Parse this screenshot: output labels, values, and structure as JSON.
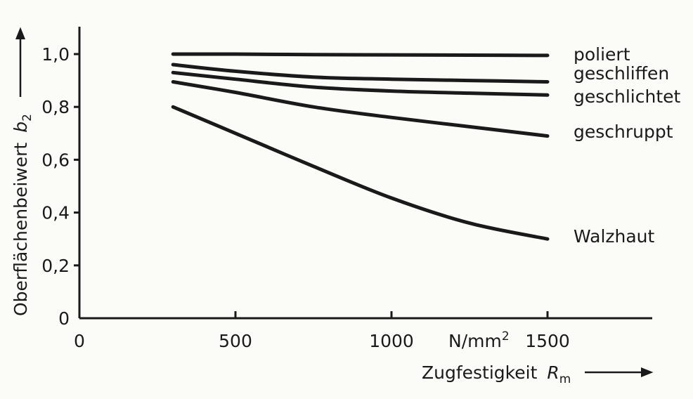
{
  "chart_data": {
    "type": "line",
    "xlabel": "Zugfestigkeit",
    "xlabel_symbol": "R",
    "xlabel_sub": "m",
    "ylabel": "Oberflächenbeiwert",
    "ylabel_symbol": "b",
    "ylabel_sub": "2",
    "x_unit": "N/mm",
    "x_unit_sup": "2",
    "xlim": [
      0,
      1850
    ],
    "ylim": [
      0,
      1.1
    ],
    "x_ticks": [
      {
        "value": 0,
        "label": "0"
      },
      {
        "value": 500,
        "label": "500"
      },
      {
        "value": 1000,
        "label": "1000"
      },
      {
        "value": 1500,
        "label": "1500"
      }
    ],
    "y_ticks": [
      {
        "value": 0,
        "label": "0"
      },
      {
        "value": 0.2,
        "label": "0,2"
      },
      {
        "value": 0.4,
        "label": "0,4"
      },
      {
        "value": 0.6,
        "label": "0,6"
      },
      {
        "value": 0.8,
        "label": "0,8"
      },
      {
        "value": 1.0,
        "label": "1,0"
      }
    ],
    "grid": false,
    "series": [
      {
        "name": "poliert",
        "x": [
          300,
          500,
          750,
          1000,
          1250,
          1500
        ],
        "y": [
          1.0,
          1.0,
          0.998,
          0.997,
          0.996,
          0.995
        ]
      },
      {
        "name": "geschliffen",
        "x": [
          300,
          500,
          750,
          1000,
          1250,
          1500
        ],
        "y": [
          0.96,
          0.935,
          0.913,
          0.905,
          0.9,
          0.895
        ]
      },
      {
        "name": "geschlichtet",
        "x": [
          300,
          500,
          750,
          1000,
          1250,
          1500
        ],
        "y": [
          0.93,
          0.905,
          0.875,
          0.86,
          0.852,
          0.845
        ]
      },
      {
        "name": "geschruppt",
        "x": [
          300,
          500,
          750,
          1000,
          1250,
          1500
        ],
        "y": [
          0.895,
          0.855,
          0.8,
          0.76,
          0.725,
          0.69
        ]
      },
      {
        "name": "Walzhaut",
        "x": [
          300,
          500,
          750,
          1000,
          1250,
          1500
        ],
        "y": [
          0.8,
          0.7,
          0.575,
          0.455,
          0.36,
          0.3
        ]
      }
    ]
  }
}
